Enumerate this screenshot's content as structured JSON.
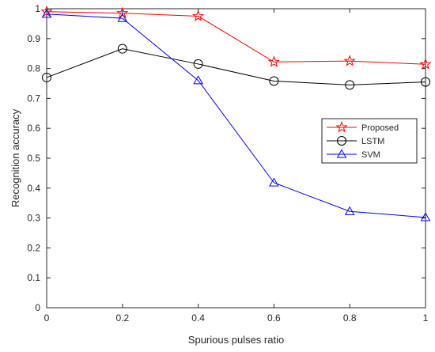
{
  "chart_data": {
    "type": "line",
    "title": "",
    "xlabel": "Spurious pulses ratio",
    "ylabel": "Recognition accuracy",
    "xlim": [
      0,
      1
    ],
    "ylim": [
      0,
      1
    ],
    "x": [
      0,
      0.2,
      0.4,
      0.6,
      0.8,
      1
    ],
    "x_ticks": [
      "0",
      "0.2",
      "0.4",
      "0.6",
      "0.8",
      "1"
    ],
    "y_ticks": [
      "0",
      "0.1",
      "0.2",
      "0.3",
      "0.4",
      "0.5",
      "0.6",
      "0.7",
      "0.8",
      "0.9",
      "1"
    ],
    "grid": false,
    "legend_position": "right-middle",
    "series": [
      {
        "name": "Proposed",
        "values": [
          0.99,
          0.985,
          0.975,
          0.822,
          0.825,
          0.814
        ],
        "color": "#ff0000",
        "marker": "star"
      },
      {
        "name": "LSTM",
        "values": [
          0.77,
          0.866,
          0.815,
          0.758,
          0.745,
          0.755
        ],
        "color": "#000000",
        "marker": "circle"
      },
      {
        "name": "SVM",
        "values": [
          0.982,
          0.968,
          0.76,
          0.418,
          0.322,
          0.302
        ],
        "color": "#0000ff",
        "marker": "triangle"
      }
    ]
  }
}
